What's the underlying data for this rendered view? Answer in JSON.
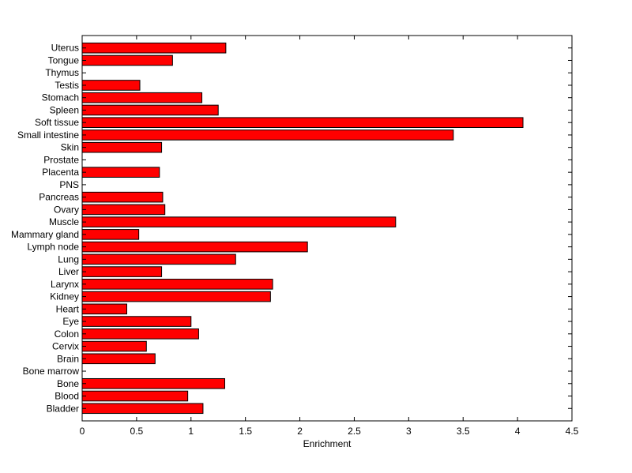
{
  "chart_data": {
    "type": "bar",
    "orientation": "horizontal",
    "title": "",
    "xlabel": "Enrichment",
    "ylabel": "",
    "xlim": [
      0,
      4.5
    ],
    "xticks": [
      0,
      0.5,
      1,
      1.5,
      2,
      2.5,
      3,
      3.5,
      4,
      4.5
    ],
    "xtick_labels": [
      "0",
      "0.5",
      "1",
      "1.5",
      "2",
      "2.5",
      "3",
      "3.5",
      "4",
      "4.5"
    ],
    "grid": false,
    "legend": "none",
    "bar_color": "#ff0000",
    "edge_color": "#000000",
    "categories": [
      "Uterus",
      "Tongue",
      "Thymus",
      "Testis",
      "Stomach",
      "Spleen",
      "Soft tissue",
      "Small intestine",
      "Skin",
      "Prostate",
      "Placenta",
      "PNS",
      "Pancreas",
      "Ovary",
      "Muscle",
      "Mammary gland",
      "Lymph node",
      "Lung",
      "Liver",
      "Larynx",
      "Kidney",
      "Heart",
      "Eye",
      "Colon",
      "Cervix",
      "Brain",
      "Bone marrow",
      "Bone",
      "Blood",
      "Bladder"
    ],
    "values": [
      1.32,
      0.83,
      0,
      0.53,
      1.1,
      1.25,
      4.05,
      3.41,
      0.73,
      0,
      0.71,
      0,
      0.74,
      0.76,
      2.88,
      0.52,
      2.07,
      1.41,
      0.73,
      1.75,
      1.73,
      0.41,
      1.0,
      1.07,
      0.59,
      0.67,
      0,
      1.31,
      0.97,
      1.11
    ]
  }
}
